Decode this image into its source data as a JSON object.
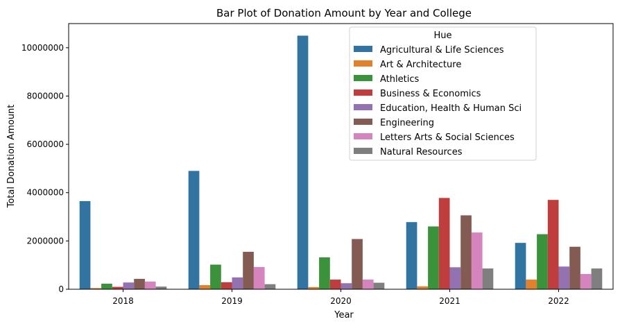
{
  "chart_data": {
    "type": "bar",
    "title": "Bar Plot of Donation Amount by Year and College",
    "xlabel": "Year",
    "ylabel": "Total Donation Amount",
    "ylim": [
      0,
      11000000
    ],
    "yticks": [
      0,
      2000000,
      4000000,
      6000000,
      8000000,
      10000000
    ],
    "ytick_labels": [
      "0",
      "2000000",
      "4000000",
      "6000000",
      "8000000",
      "10000000"
    ],
    "grid": false,
    "legend_title": "Hue",
    "legend_position": "top-right",
    "categories": [
      "2018",
      "2019",
      "2020",
      "2021",
      "2022"
    ],
    "series": [
      {
        "name": "Agricultural & Life Sciences",
        "color": "#3274a1",
        "values": [
          3650000,
          4900000,
          10500000,
          2780000,
          1920000
        ]
      },
      {
        "name": "Art & Architecture",
        "color": "#e1812c",
        "values": [
          50000,
          170000,
          90000,
          120000,
          400000
        ]
      },
      {
        "name": "Athletics",
        "color": "#3a923a",
        "values": [
          230000,
          1020000,
          1320000,
          2600000,
          2280000
        ]
      },
      {
        "name": "Business & Economics",
        "color": "#c03d3e",
        "values": [
          100000,
          290000,
          400000,
          3780000,
          3700000
        ]
      },
      {
        "name": "Education, Health & Human Sci",
        "color": "#9372b2",
        "values": [
          280000,
          490000,
          250000,
          910000,
          940000
        ]
      },
      {
        "name": "Engineering",
        "color": "#845b53",
        "values": [
          430000,
          1550000,
          2080000,
          3060000,
          1760000
        ]
      },
      {
        "name": "Letters Arts & Social Sciences",
        "color": "#d684bd",
        "values": [
          320000,
          920000,
          400000,
          2350000,
          630000
        ]
      },
      {
        "name": "Natural Resources",
        "color": "#7f7f7f",
        "values": [
          110000,
          210000,
          270000,
          860000,
          860000
        ]
      }
    ]
  }
}
